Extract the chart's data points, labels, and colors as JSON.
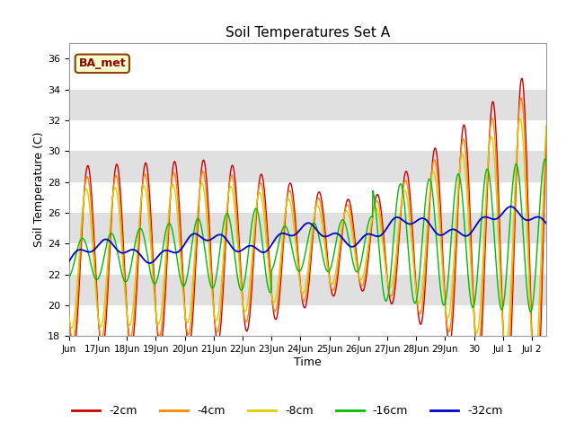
{
  "title": "Soil Temperatures Set A",
  "xlabel": "Time",
  "ylabel": "Soil Temperature (C)",
  "ylim": [
    18,
    37
  ],
  "yticks": [
    18,
    20,
    22,
    24,
    26,
    28,
    30,
    32,
    34,
    36
  ],
  "annotation": "BA_met",
  "background_color": "#ffffff",
  "plot_bg_bands": [
    "#ffffff",
    "#e0e0e0"
  ],
  "line_colors": {
    "-2cm": "#cc0000",
    "-4cm": "#ff8800",
    "-8cm": "#ddcc00",
    "-16cm": "#00bb00",
    "-32cm": "#0000cc"
  },
  "x_tick_labels": [
    "Jun",
    "17Jun",
    "18Jun",
    "19Jun",
    "20Jun",
    "21Jun",
    "22Jun",
    "23Jun",
    "24Jun",
    "25Jun",
    "26Jun",
    "27Jun",
    "28Jun",
    "29Jun",
    "30",
    "Jul 1",
    "Jul 2"
  ],
  "figsize": [
    6.4,
    4.8
  ],
  "dpi": 100
}
